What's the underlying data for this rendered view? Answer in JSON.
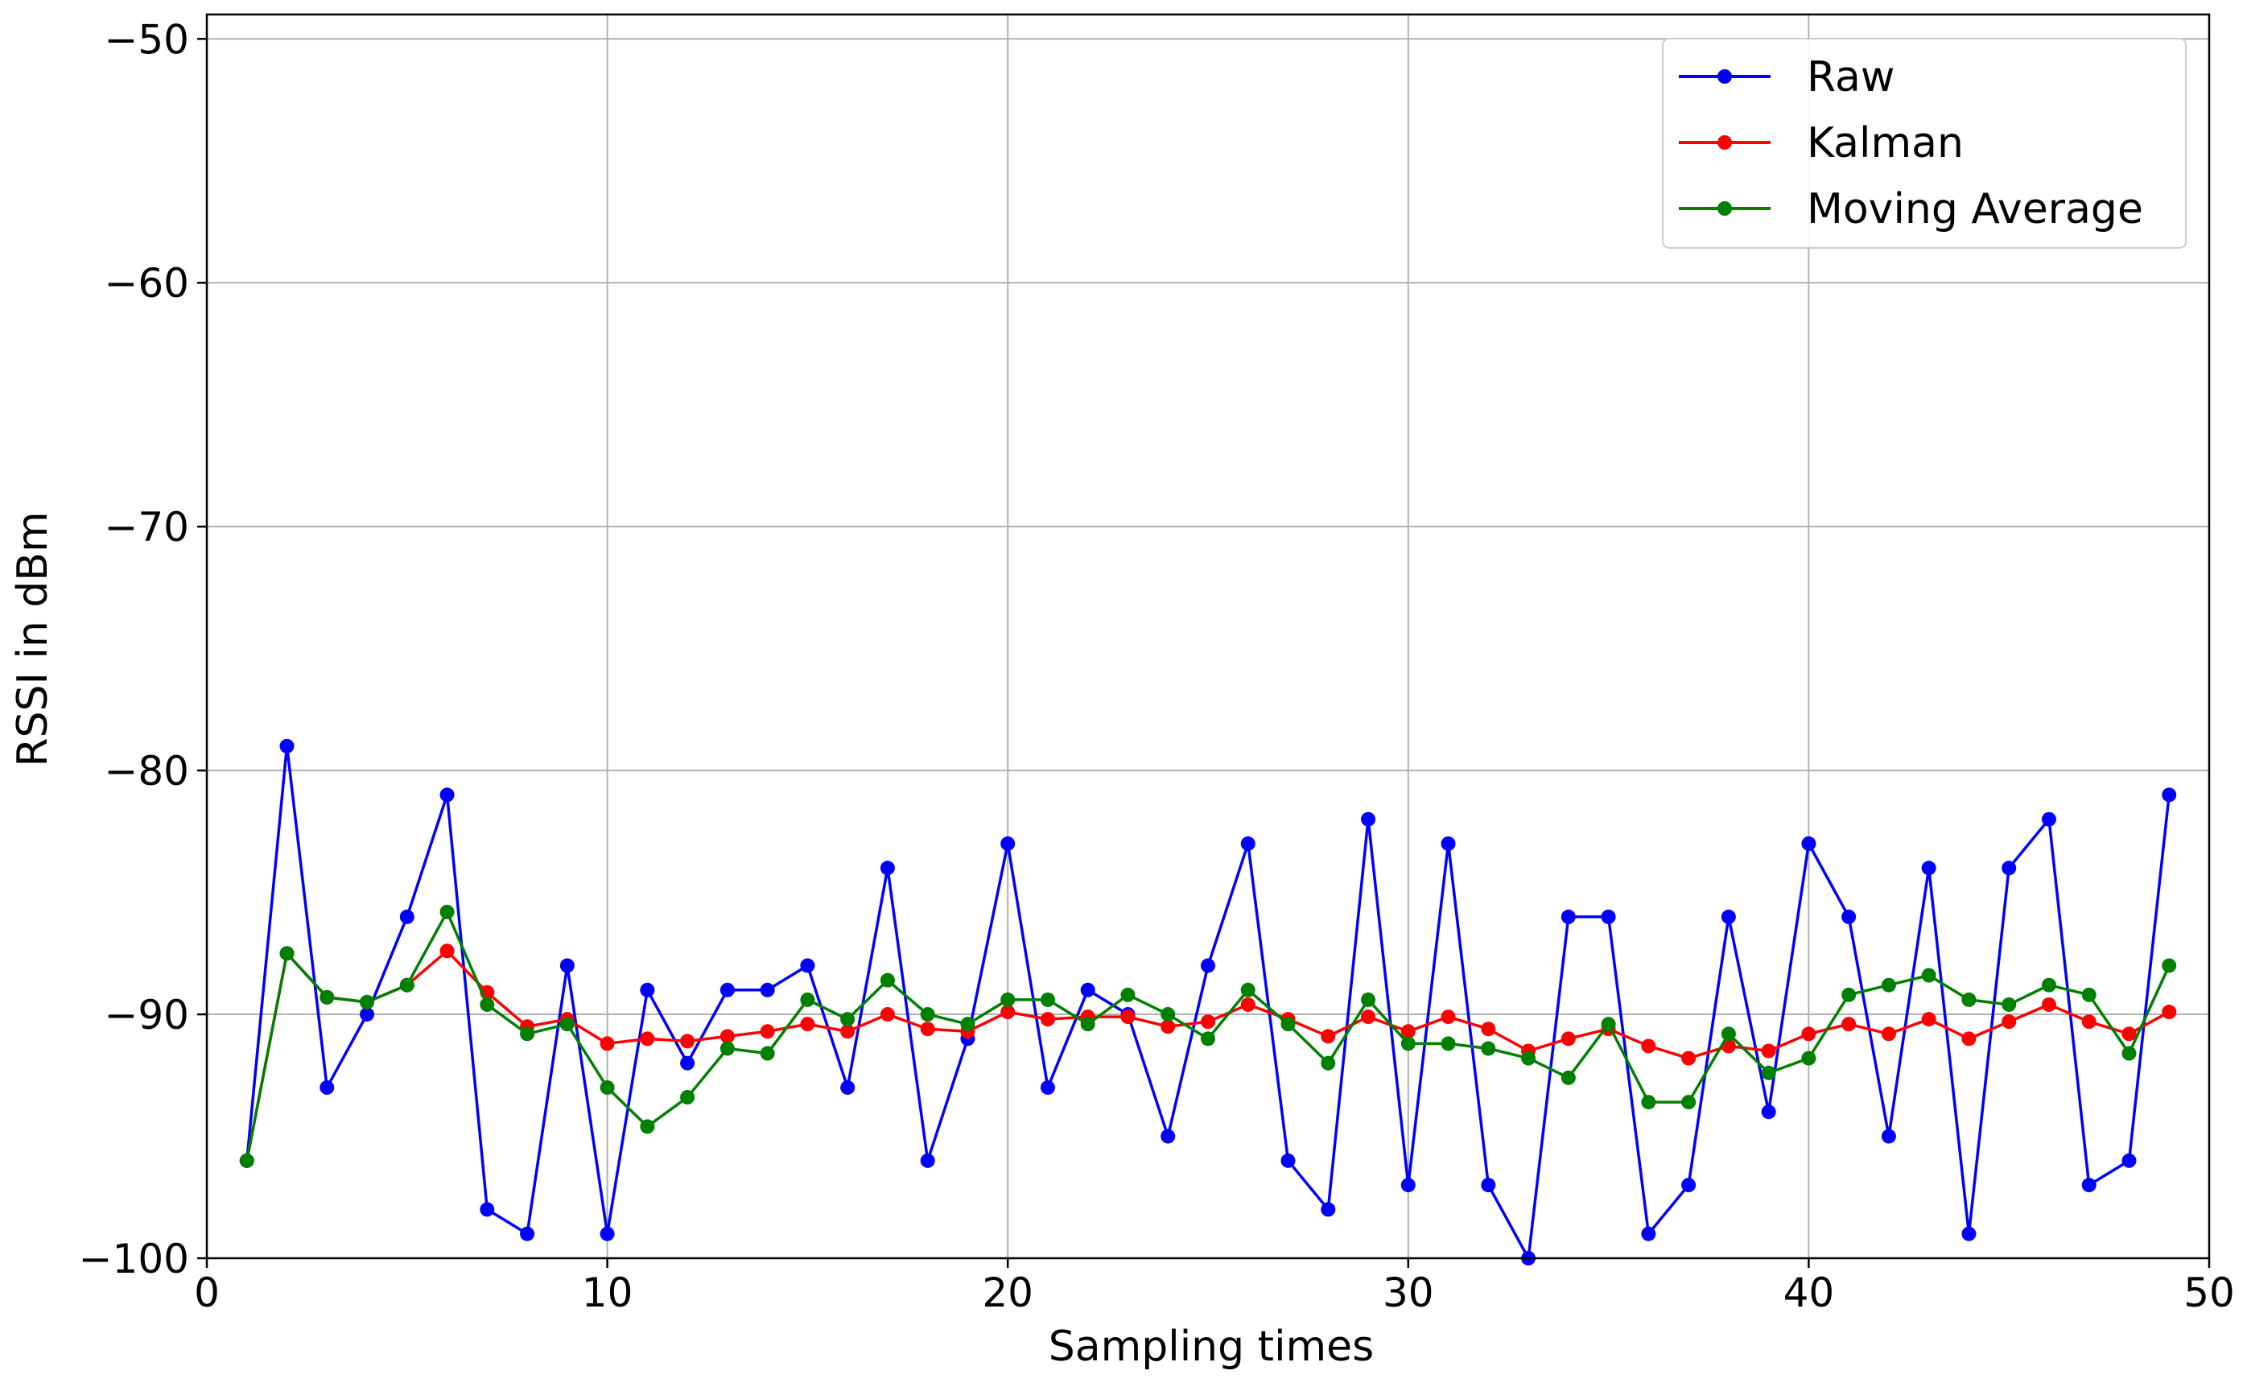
{
  "chart_data": {
    "type": "line",
    "title": "",
    "xlabel": "Sampling times",
    "ylabel": "RSSI in dBm",
    "xlim": [
      0,
      50
    ],
    "ylim": [
      -100,
      -49
    ],
    "xticks": [
      0,
      10,
      20,
      30,
      40,
      50
    ],
    "xtick_labels": [
      "0",
      "10",
      "20",
      "30",
      "40",
      "50"
    ],
    "yticks": [
      -100,
      -90,
      -80,
      -70,
      -60,
      -50
    ],
    "ytick_labels": [
      "−100",
      "−90",
      "−80",
      "−70",
      "−60",
      "−50"
    ],
    "grid": true,
    "legend_position": "top-right",
    "x": [
      1,
      2,
      3,
      4,
      5,
      6,
      7,
      8,
      9,
      10,
      11,
      12,
      13,
      14,
      15,
      16,
      17,
      18,
      19,
      20,
      21,
      22,
      23,
      24,
      25,
      26,
      27,
      28,
      29,
      30,
      31,
      32,
      33,
      34,
      35,
      36,
      37,
      38,
      39,
      40,
      41,
      42,
      43,
      44,
      45,
      46,
      47,
      48,
      49
    ],
    "series": [
      {
        "name": "Raw",
        "color": "#0000ff",
        "values": [
          -96,
          -79,
          -93,
          -90,
          -86,
          -81,
          -98,
          -99,
          -88,
          -99,
          -89,
          -92,
          -89,
          -89,
          -88,
          -93,
          -84,
          -96,
          -91,
          -83,
          -93,
          -89,
          -90,
          -95,
          -88,
          -83,
          -96,
          -98,
          -82,
          -97,
          -83,
          -97,
          -100,
          -86,
          -86,
          -99,
          -97,
          -86,
          -94,
          -83,
          -86,
          -95,
          -84,
          -99,
          -84,
          -82,
          -97,
          -96,
          -81
        ]
      },
      {
        "name": "Kalman",
        "color": "#ff0000",
        "values": [
          -96,
          -87.5,
          -89.3,
          -89.5,
          -88.8,
          -87.4,
          -89.1,
          -90.5,
          -90.2,
          -91.2,
          -91,
          -91.1,
          -90.9,
          -90.7,
          -90.4,
          -90.7,
          -90,
          -90.6,
          -90.7,
          -89.9,
          -90.2,
          -90.1,
          -90.1,
          -90.5,
          -90.3,
          -89.6,
          -90.2,
          -90.9,
          -90.1,
          -90.7,
          -90.1,
          -90.6,
          -91.5,
          -91,
          -90.6,
          -91.3,
          -91.8,
          -91.3,
          -91.5,
          -90.8,
          -90.4,
          -90.8,
          -90.2,
          -91,
          -90.3,
          -89.6,
          -90.3,
          -90.8,
          -89.9
        ]
      },
      {
        "name": "Moving Average",
        "color": "#008000",
        "values": [
          -96,
          -87.5,
          -89.3,
          -89.5,
          -88.8,
          -85.8,
          -89.6,
          -90.8,
          -90.4,
          -93,
          -94.6,
          -93.4,
          -91.4,
          -91.6,
          -89.4,
          -90.2,
          -88.6,
          -90,
          -90.4,
          -89.4,
          -89.4,
          -90.4,
          -89.2,
          -90,
          -91,
          -89,
          -90.4,
          -92,
          -89.4,
          -91.2,
          -91.2,
          -91.4,
          -91.8,
          -92.6,
          -90.4,
          -93.6,
          -93.6,
          -90.8,
          -92.4,
          -91.8,
          -89.2,
          -88.8,
          -88.4,
          -89.4,
          -89.6,
          -88.8,
          -89.2,
          -91.6,
          -88
        ]
      }
    ]
  }
}
